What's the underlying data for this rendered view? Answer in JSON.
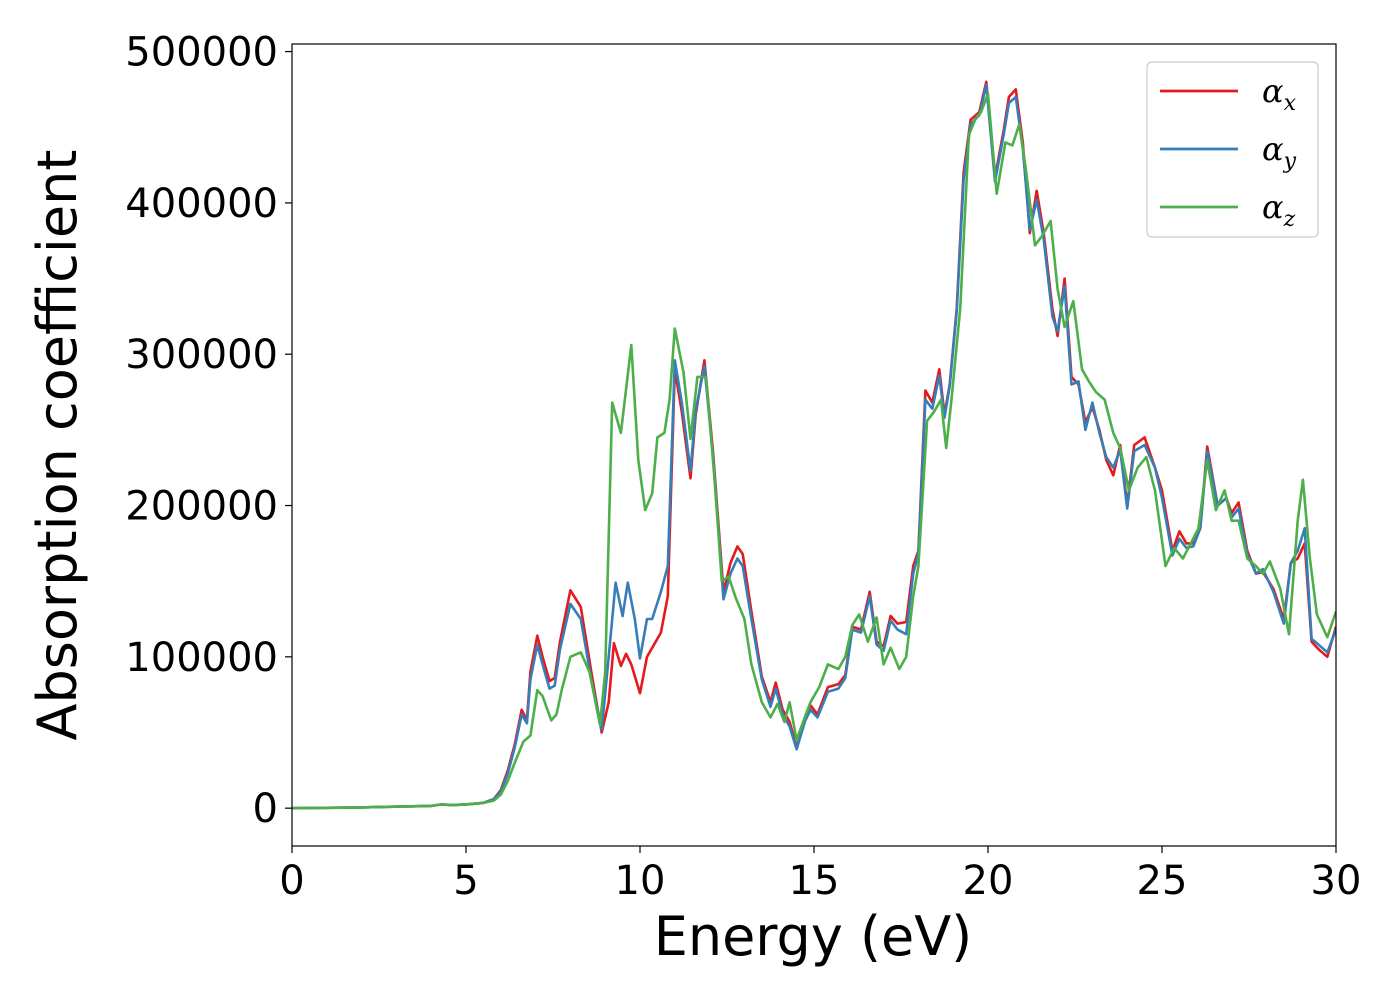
{
  "chart_data": {
    "type": "line",
    "title": "",
    "xlabel": "Energy (eV)",
    "ylabel": "Absorption coefficient",
    "xlim": [
      0,
      30
    ],
    "ylim": [
      -25000,
      505000
    ],
    "xticks": [
      "0",
      "5",
      "10",
      "15",
      "20",
      "25",
      "30"
    ],
    "yticks": [
      "0",
      "100000",
      "200000",
      "300000",
      "400000",
      "500000"
    ],
    "grid": false,
    "legend_position": "top-right",
    "series": [
      {
        "name": "α_x",
        "legend_main": "α",
        "legend_sub": "x",
        "color": "#e41a1c",
        "x": [
          0,
          2,
          4,
          4.3,
          4.6,
          5,
          5.5,
          5.8,
          6,
          6.2,
          6.4,
          6.6,
          6.75,
          6.85,
          7.05,
          7.2,
          7.4,
          7.55,
          7.7,
          8.0,
          8.3,
          8.6,
          8.9,
          9.1,
          9.25,
          9.45,
          9.6,
          9.75,
          10.0,
          10.2,
          10.35,
          10.6,
          10.8,
          11.0,
          11.2,
          11.45,
          11.6,
          11.85,
          12.1,
          12.4,
          12.6,
          12.8,
          12.95,
          13.2,
          13.5,
          13.75,
          13.9,
          14.1,
          14.3,
          14.5,
          14.75,
          14.9,
          15.1,
          15.4,
          15.7,
          15.9,
          16.1,
          16.35,
          16.6,
          16.8,
          17.0,
          17.2,
          17.4,
          17.65,
          17.85,
          18.0,
          18.2,
          18.4,
          18.6,
          18.75,
          18.9,
          19.1,
          19.3,
          19.5,
          19.75,
          19.95,
          20.2,
          20.45,
          20.6,
          20.8,
          21.0,
          21.2,
          21.4,
          21.6,
          21.85,
          22.0,
          22.2,
          22.4,
          22.6,
          22.8,
          23.0,
          23.2,
          23.4,
          23.6,
          23.8,
          24.0,
          24.2,
          24.5,
          24.8,
          25.0,
          25.3,
          25.5,
          25.7,
          25.9,
          26.1,
          26.3,
          26.6,
          26.85,
          27.0,
          27.2,
          27.45,
          27.7,
          27.9,
          28.2,
          28.5,
          28.7,
          28.9,
          29.1,
          29.3,
          29.5,
          29.75,
          30.0
        ],
        "values": [
          0,
          500,
          1500,
          2500,
          2000,
          2500,
          3500,
          6000,
          12000,
          25000,
          42000,
          65000,
          58000,
          90000,
          114000,
          100000,
          84000,
          86000,
          110000,
          144000,
          133000,
          90000,
          50000,
          70000,
          109000,
          94000,
          102000,
          95000,
          76000,
          100000,
          106000,
          116000,
          140000,
          290000,
          262000,
          218000,
          260000,
          296000,
          235000,
          143000,
          162000,
          173000,
          168000,
          130000,
          87000,
          70000,
          83000,
          65000,
          57000,
          40000,
          60000,
          68000,
          62000,
          80000,
          82000,
          88000,
          120000,
          118000,
          143000,
          110000,
          107000,
          127000,
          122000,
          123000,
          160000,
          170000,
          276000,
          268000,
          290000,
          260000,
          280000,
          330000,
          420000,
          455000,
          460000,
          480000,
          417000,
          448000,
          470000,
          475000,
          440000,
          380000,
          408000,
          380000,
          330000,
          312000,
          350000,
          285000,
          280000,
          255000,
          265000,
          250000,
          230000,
          220000,
          240000,
          200000,
          240000,
          245000,
          225000,
          210000,
          170000,
          183000,
          175000,
          175000,
          185000,
          239000,
          200000,
          205000,
          195000,
          202000,
          170000,
          155000,
          156000,
          145000,
          125000,
          162000,
          165000,
          175000,
          110000,
          105000,
          100000,
          120000
        ]
      },
      {
        "name": "α_y",
        "legend_main": "α",
        "legend_sub": "y",
        "color": "#377eb8",
        "x": [
          0,
          2,
          4,
          4.3,
          4.6,
          5,
          5.5,
          5.8,
          6,
          6.2,
          6.4,
          6.6,
          6.75,
          6.85,
          7.05,
          7.2,
          7.4,
          7.55,
          7.7,
          8.0,
          8.3,
          8.6,
          8.9,
          9.1,
          9.3,
          9.5,
          9.65,
          9.85,
          10.0,
          10.2,
          10.35,
          10.6,
          10.8,
          11.0,
          11.2,
          11.45,
          11.6,
          11.85,
          12.1,
          12.4,
          12.6,
          12.8,
          12.95,
          13.2,
          13.5,
          13.75,
          13.9,
          14.1,
          14.3,
          14.5,
          14.75,
          14.9,
          15.1,
          15.4,
          15.7,
          15.9,
          16.1,
          16.35,
          16.6,
          16.8,
          17.0,
          17.2,
          17.4,
          17.65,
          17.85,
          18.0,
          18.2,
          18.4,
          18.6,
          18.75,
          18.9,
          19.1,
          19.3,
          19.5,
          19.75,
          19.95,
          20.2,
          20.45,
          20.6,
          20.8,
          21.0,
          21.2,
          21.4,
          21.6,
          21.85,
          22.0,
          22.2,
          22.4,
          22.6,
          22.8,
          23.0,
          23.2,
          23.4,
          23.6,
          23.8,
          24.0,
          24.2,
          24.5,
          24.8,
          25.0,
          25.3,
          25.5,
          25.7,
          25.9,
          26.1,
          26.3,
          26.6,
          26.85,
          27.0,
          27.2,
          27.45,
          27.7,
          27.9,
          28.2,
          28.5,
          28.7,
          28.9,
          29.1,
          29.3,
          29.5,
          29.75,
          30.0
        ],
        "values": [
          0,
          500,
          1500,
          2500,
          2000,
          2500,
          3500,
          6000,
          11000,
          23000,
          40000,
          62000,
          56000,
          85000,
          108000,
          95000,
          79000,
          81000,
          105000,
          135000,
          125000,
          85000,
          52000,
          100000,
          149000,
          127000,
          149000,
          125000,
          99000,
          125000,
          125000,
          143000,
          160000,
          296000,
          268000,
          223000,
          263000,
          292000,
          232000,
          138000,
          155000,
          165000,
          160000,
          125000,
          85000,
          67000,
          79000,
          62000,
          54000,
          39000,
          58000,
          65000,
          60000,
          77000,
          79000,
          86000,
          118000,
          116000,
          140000,
          108000,
          104000,
          124000,
          118000,
          115000,
          155000,
          168000,
          270000,
          264000,
          286000,
          258000,
          279000,
          328000,
          415000,
          452000,
          458000,
          478000,
          414000,
          445000,
          466000,
          470000,
          436000,
          382000,
          402000,
          376000,
          325000,
          315000,
          345000,
          280000,
          282000,
          250000,
          268000,
          248000,
          232000,
          225000,
          237000,
          198000,
          236000,
          240000,
          225000,
          205000,
          167000,
          178000,
          172000,
          173000,
          185000,
          236000,
          200000,
          205000,
          192000,
          198000,
          168000,
          155000,
          158000,
          143000,
          122000,
          162000,
          170000,
          185000,
          112000,
          108000,
          103000,
          118000
        ]
      },
      {
        "name": "α_z",
        "legend_main": "α",
        "legend_sub": "z",
        "color": "#4daf4a",
        "x": [
          0,
          2,
          4,
          4.3,
          4.6,
          5,
          5.5,
          5.8,
          6,
          6.2,
          6.4,
          6.65,
          6.85,
          7.05,
          7.2,
          7.45,
          7.6,
          7.75,
          8.0,
          8.3,
          8.55,
          8.85,
          9.0,
          9.2,
          9.45,
          9.75,
          9.95,
          10.15,
          10.35,
          10.5,
          10.7,
          10.85,
          11.0,
          11.25,
          11.45,
          11.65,
          11.9,
          12.15,
          12.35,
          12.55,
          12.75,
          13.0,
          13.2,
          13.5,
          13.75,
          13.95,
          14.15,
          14.3,
          14.5,
          14.7,
          14.9,
          15.15,
          15.4,
          15.7,
          15.9,
          16.1,
          16.3,
          16.55,
          16.8,
          17.0,
          17.2,
          17.45,
          17.65,
          17.85,
          18.0,
          18.25,
          18.45,
          18.65,
          18.8,
          18.95,
          19.2,
          19.45,
          19.65,
          19.8,
          20.0,
          20.25,
          20.5,
          20.7,
          20.9,
          21.1,
          21.35,
          21.55,
          21.8,
          22.0,
          22.2,
          22.45,
          22.7,
          22.9,
          23.1,
          23.35,
          23.6,
          23.8,
          24.05,
          24.3,
          24.55,
          24.8,
          25.1,
          25.35,
          25.6,
          25.85,
          26.05,
          26.3,
          26.55,
          26.8,
          27.0,
          27.2,
          27.45,
          27.7,
          27.9,
          28.1,
          28.4,
          28.65,
          28.9,
          29.05,
          29.25,
          29.45,
          29.75,
          30.0
        ],
        "values": [
          0,
          500,
          1500,
          2500,
          2000,
          2500,
          3500,
          5000,
          9000,
          18000,
          30000,
          44000,
          48000,
          78000,
          74000,
          58000,
          62000,
          78000,
          100000,
          103000,
          90000,
          55000,
          90000,
          268000,
          248000,
          306000,
          230000,
          197000,
          208000,
          245000,
          248000,
          270000,
          317000,
          288000,
          244000,
          285000,
          285000,
          215000,
          150000,
          153000,
          139000,
          125000,
          95000,
          70000,
          60000,
          69000,
          57000,
          70000,
          45000,
          58000,
          70000,
          80000,
          95000,
          92000,
          100000,
          121000,
          128000,
          110000,
          126000,
          95000,
          106000,
          92000,
          100000,
          140000,
          160000,
          256000,
          262000,
          270000,
          238000,
          270000,
          330000,
          445000,
          456000,
          460000,
          472000,
          406000,
          440000,
          438000,
          452000,
          420000,
          372000,
          378000,
          388000,
          343000,
          318000,
          335000,
          290000,
          282000,
          275000,
          270000,
          248000,
          238000,
          210000,
          225000,
          232000,
          210000,
          160000,
          172000,
          165000,
          176000,
          185000,
          230000,
          197000,
          210000,
          190000,
          190000,
          165000,
          160000,
          155000,
          163000,
          145000,
          115000,
          190000,
          217000,
          165000,
          128000,
          113000,
          130000
        ]
      }
    ]
  }
}
